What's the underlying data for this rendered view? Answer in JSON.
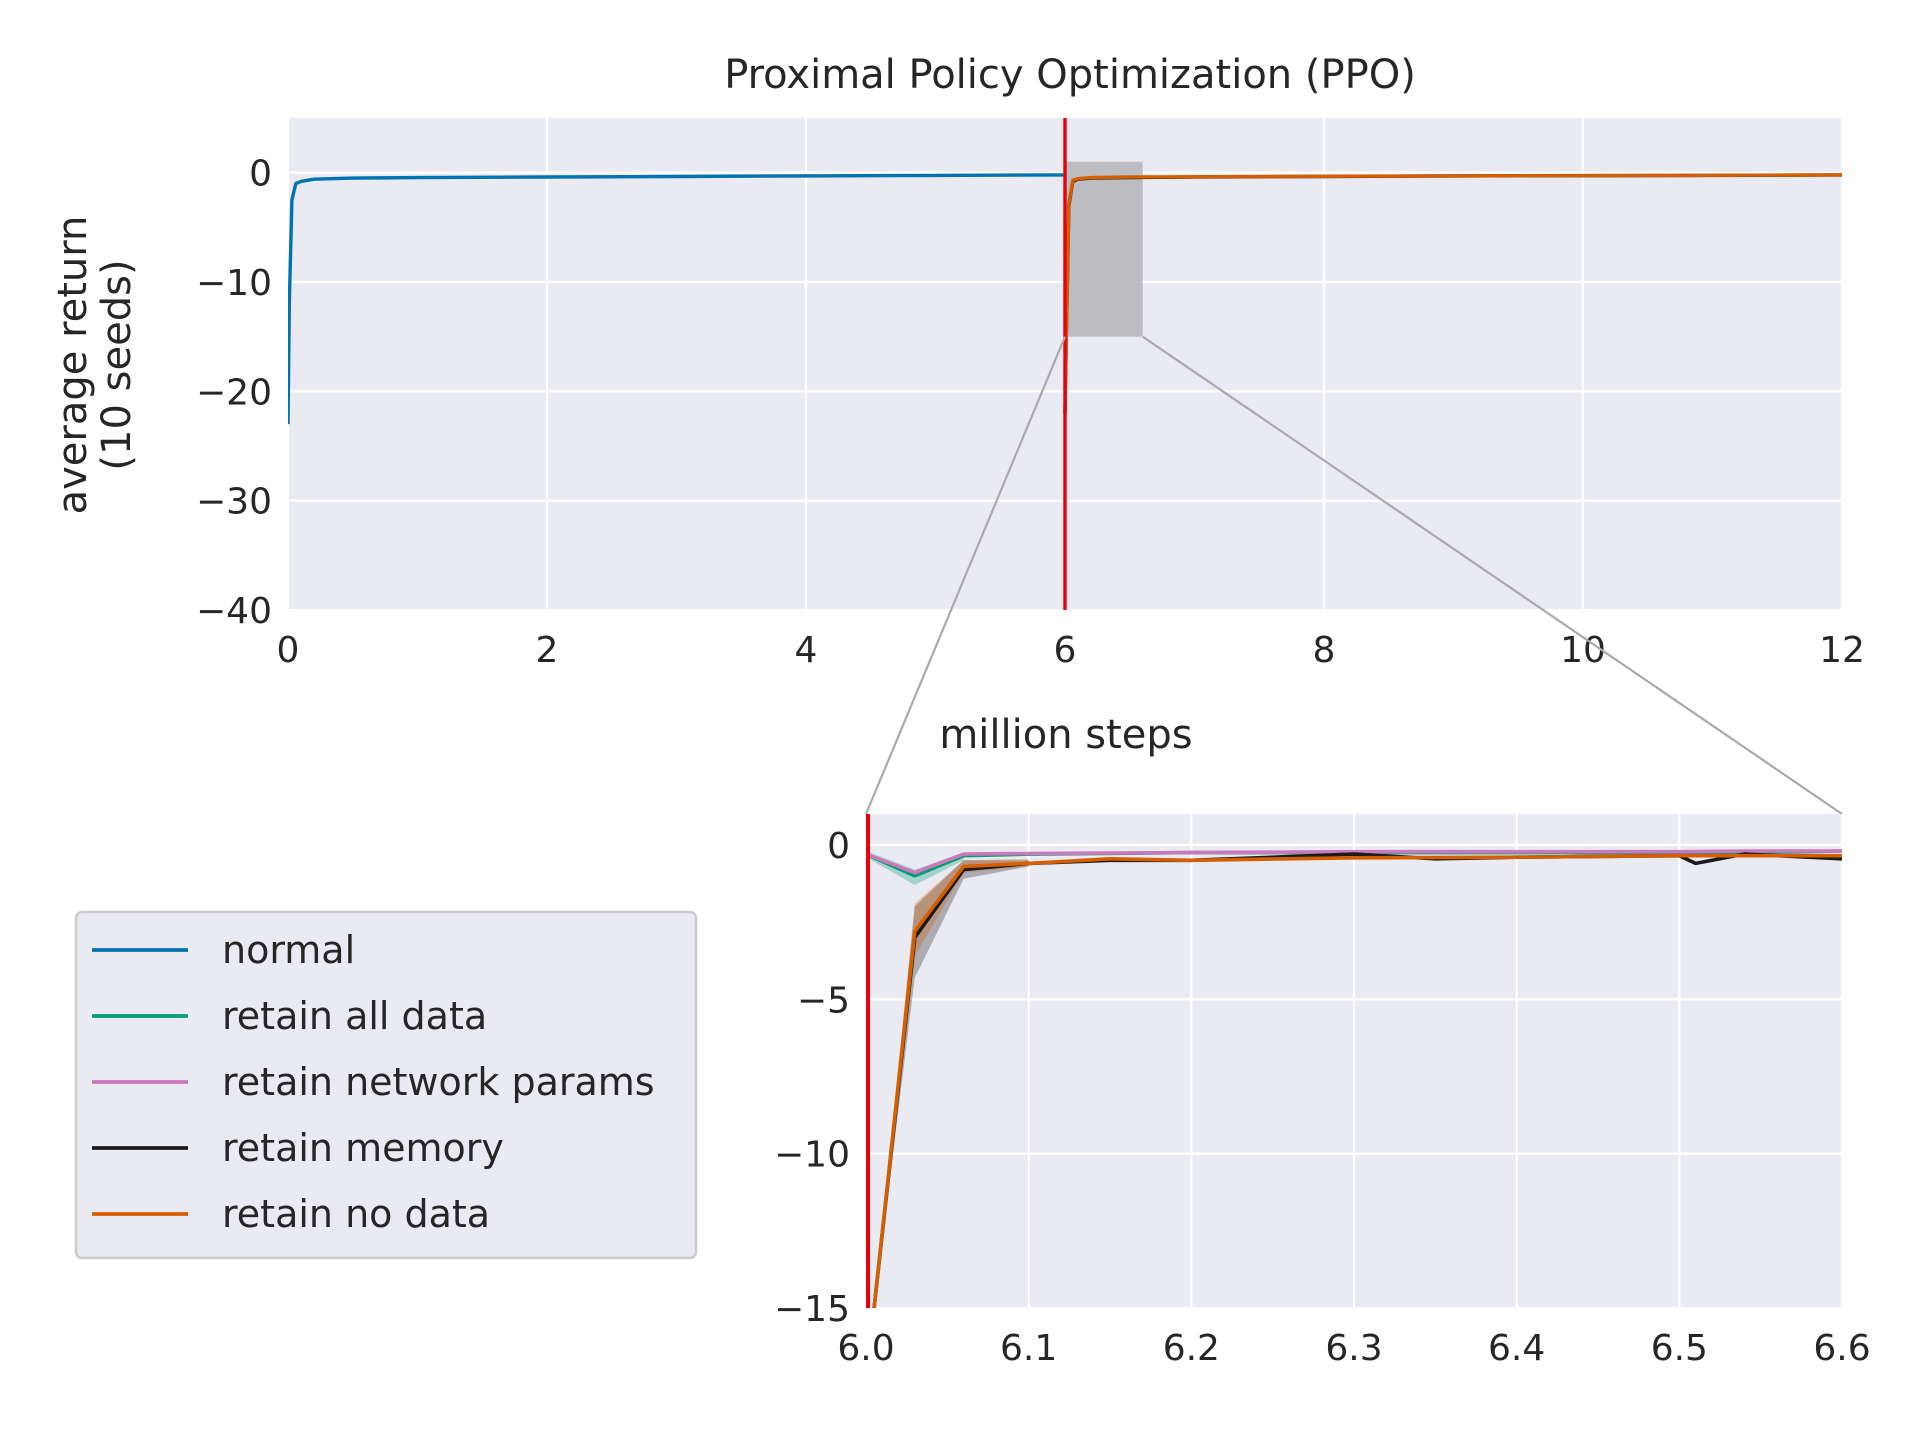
{
  "chart_data": [
    {
      "type": "line",
      "title": "Proximal Policy Optimization (PPO)",
      "xlabel": "million steps",
      "ylabel_line1": "average return",
      "ylabel_line2": "(10 seeds)",
      "xlim": [
        0,
        12
      ],
      "ylim": [
        -40,
        5
      ],
      "xticks": [
        0,
        2,
        4,
        6,
        8,
        10,
        12
      ],
      "yticks": [
        0,
        -10,
        -20,
        -30,
        -40
      ],
      "xtick_labels": [
        "0",
        "2",
        "4",
        "6",
        "8",
        "10",
        "12"
      ],
      "ytick_labels": [
        "0",
        "−10",
        "−20",
        "−30",
        "−40"
      ],
      "grid": true,
      "vertical_marker_x": 6,
      "zoom_region": {
        "x": [
          6.0,
          6.6
        ],
        "y": [
          -15,
          1
        ]
      },
      "series": [
        {
          "name": "normal",
          "color": "#0173b2",
          "x": [
            0.0,
            0.01,
            0.03,
            0.06,
            0.1,
            0.2,
            0.5,
            1,
            2,
            3,
            4,
            5,
            6
          ],
          "y": [
            -23,
            -12,
            -2.5,
            -1.0,
            -0.8,
            -0.6,
            -0.5,
            -0.45,
            -0.4,
            -0.35,
            -0.3,
            -0.25,
            -0.2
          ]
        },
        {
          "name": "retain memory",
          "color": "#1a1a1a",
          "x": [
            6.0,
            6.01,
            6.03,
            6.06,
            6.1,
            6.2,
            6.5,
            7,
            8,
            9,
            10,
            11,
            12
          ],
          "y": [
            -22,
            -15,
            -3.0,
            -0.8,
            -0.6,
            -0.5,
            -0.45,
            -0.4,
            -0.35,
            -0.3,
            -0.28,
            -0.25,
            -0.2
          ]
        },
        {
          "name": "retain no data",
          "color": "#d55e00",
          "x": [
            6.0,
            6.01,
            6.03,
            6.06,
            6.1,
            6.2,
            6.5,
            7,
            8,
            9,
            10,
            11,
            12
          ],
          "y": [
            -22,
            -15,
            -2.8,
            -0.7,
            -0.55,
            -0.45,
            -0.4,
            -0.38,
            -0.33,
            -0.3,
            -0.27,
            -0.24,
            -0.2
          ]
        }
      ]
    },
    {
      "type": "line",
      "xlim": [
        6.0,
        6.6
      ],
      "ylim": [
        -15,
        1
      ],
      "xticks": [
        6.0,
        6.1,
        6.2,
        6.3,
        6.4,
        6.5,
        6.6
      ],
      "yticks": [
        0,
        -5,
        -10,
        -15
      ],
      "xtick_labels": [
        "6.0",
        "6.1",
        "6.2",
        "6.3",
        "6.4",
        "6.5",
        "6.6"
      ],
      "ytick_labels": [
        "0",
        "−5",
        "−10",
        "−15"
      ],
      "grid": true,
      "vertical_marker_x": 6.0,
      "series": [
        {
          "name": "retain all data",
          "color": "#029e73",
          "x": [
            6.0,
            6.03,
            6.06,
            6.1,
            6.2,
            6.3,
            6.4,
            6.5,
            6.54,
            6.6
          ],
          "y": [
            -0.3,
            -1.0,
            -0.35,
            -0.3,
            -0.25,
            -0.25,
            -0.25,
            -0.25,
            -0.25,
            -0.2
          ]
        },
        {
          "name": "retain network params",
          "color": "#cc78bc",
          "x": [
            6.0,
            6.03,
            6.06,
            6.1,
            6.2,
            6.3,
            6.4,
            6.5,
            6.54,
            6.6
          ],
          "y": [
            -0.3,
            -0.9,
            -0.3,
            -0.28,
            -0.25,
            -0.22,
            -0.22,
            -0.22,
            -0.2,
            -0.2
          ]
        },
        {
          "name": "retain memory",
          "color": "#1a1a1a",
          "x": [
            6.0,
            6.005,
            6.03,
            6.06,
            6.1,
            6.15,
            6.2,
            6.3,
            6.35,
            6.4,
            6.5,
            6.51,
            6.54,
            6.6
          ],
          "y": [
            -20,
            -15,
            -3.0,
            -0.8,
            -0.6,
            -0.5,
            -0.5,
            -0.3,
            -0.45,
            -0.4,
            -0.35,
            -0.6,
            -0.3,
            -0.45
          ]
        },
        {
          "name": "retain no data",
          "color": "#d55e00",
          "x": [
            6.0,
            6.005,
            6.03,
            6.06,
            6.1,
            6.15,
            6.2,
            6.3,
            6.4,
            6.5,
            6.54,
            6.6
          ],
          "y": [
            -20,
            -15,
            -2.8,
            -0.7,
            -0.6,
            -0.45,
            -0.5,
            -0.42,
            -0.4,
            -0.35,
            -0.35,
            -0.35
          ]
        }
      ],
      "bands": [
        {
          "series": "retain memory",
          "color": "#1a1a1a",
          "x": [
            6.005,
            6.03,
            6.06,
            6.1
          ],
          "lo": [
            -15,
            -4.3,
            -1.1,
            -0.7
          ],
          "hi": [
            -15,
            -2.0,
            -0.5,
            -0.5
          ]
        },
        {
          "series": "retain no data",
          "color": "#d55e00",
          "x": [
            6.005,
            6.03,
            6.06,
            6.1
          ],
          "lo": [
            -15,
            -3.6,
            -0.9,
            -0.7
          ],
          "hi": [
            -15,
            -1.9,
            -0.5,
            -0.45
          ]
        },
        {
          "series": "retain all data",
          "color": "#029e73",
          "x": [
            6.0,
            6.03,
            6.06
          ],
          "lo": [
            -0.4,
            -1.3,
            -0.5
          ],
          "hi": [
            -0.2,
            -0.8,
            -0.25
          ]
        }
      ]
    }
  ],
  "legend": {
    "placement": "lower-left",
    "entries": [
      {
        "name": "normal",
        "color": "#0173b2"
      },
      {
        "name": "retain all data",
        "color": "#029e73"
      },
      {
        "name": "retain network params",
        "color": "#cc78bc"
      },
      {
        "name": "retain memory",
        "color": "#1a1a1a"
      },
      {
        "name": "retain no data",
        "color": "#d55e00"
      }
    ]
  },
  "colors": {
    "axes_background": "#eaeaf2",
    "grid": "#ffffff",
    "marker_line": "#e8000b",
    "zoom_box": "#b4b4b8",
    "connector": "#aaaaaa"
  }
}
